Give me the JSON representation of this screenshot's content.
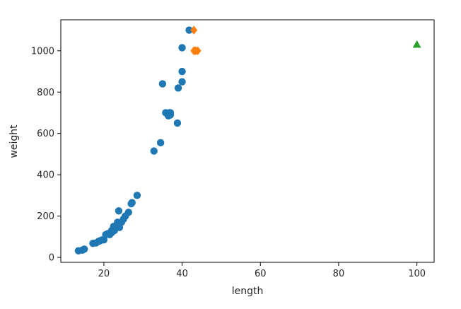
{
  "chart_data": {
    "type": "scatter",
    "title": "",
    "xlabel": "length",
    "ylabel": "weight",
    "xlim": [
      9.0,
      104.4
    ],
    "ylim": [
      -24.0,
      1150.0
    ],
    "xticks": [
      20,
      40,
      60,
      80,
      100
    ],
    "yticks": [
      0,
      200,
      400,
      600,
      800,
      1000
    ],
    "grid": false,
    "series": [
      {
        "marker": "circle",
        "color": "#1f77b4",
        "points": [
          [
            13.5,
            32
          ],
          [
            14.5,
            35
          ],
          [
            15.0,
            40
          ],
          [
            17.2,
            68
          ],
          [
            18.0,
            70
          ],
          [
            18.7,
            78
          ],
          [
            19.0,
            80
          ],
          [
            19.6,
            85
          ],
          [
            20.0,
            85
          ],
          [
            20.5,
            110
          ],
          [
            21.0,
            115
          ],
          [
            21.5,
            110
          ],
          [
            22.0,
            130
          ],
          [
            22.0,
            120
          ],
          [
            22.5,
            150
          ],
          [
            22.7,
            130
          ],
          [
            23.5,
            170
          ],
          [
            24.0,
            145
          ],
          [
            23.8,
            225
          ],
          [
            24.5,
            170
          ],
          [
            25.0,
            185
          ],
          [
            25.5,
            200
          ],
          [
            26.3,
            218
          ],
          [
            27.0,
            260
          ],
          [
            27.2,
            265
          ],
          [
            28.5,
            300
          ],
          [
            32.8,
            515
          ],
          [
            34.5,
            555
          ],
          [
            35.0,
            840
          ],
          [
            35.8,
            700
          ],
          [
            36.5,
            685
          ],
          [
            36.8,
            700
          ],
          [
            37.0,
            700
          ],
          [
            37.0,
            690
          ],
          [
            38.8,
            650
          ],
          [
            39.0,
            820
          ],
          [
            40.0,
            850
          ],
          [
            40.0,
            900
          ],
          [
            40.0,
            1015
          ],
          [
            41.8,
            1100
          ]
        ]
      },
      {
        "marker": "diamond",
        "color": "#ff7f0e",
        "points": [
          [
            43.0,
            1100
          ],
          [
            43.2,
            1000
          ],
          [
            43.0,
            1000
          ],
          [
            44.0,
            1000
          ],
          [
            43.5,
            1000
          ]
        ]
      },
      {
        "marker": "triangle",
        "color": "#2ca02c",
        "points": [
          [
            100.0,
            1030
          ]
        ]
      }
    ]
  }
}
